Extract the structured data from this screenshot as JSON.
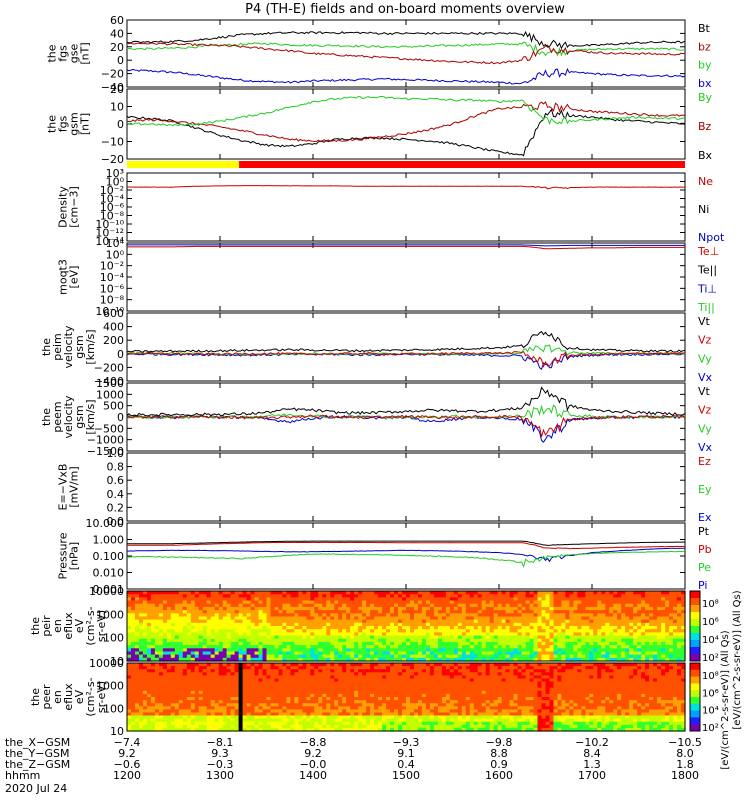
{
  "title": "P4 (TH-E) fields and on-board moments overview",
  "chart_data": [
    {
      "type": "line",
      "ylabel": [
        "the",
        "fgs",
        "gse",
        "[nT]"
      ],
      "ylim": [
        -40,
        60
      ],
      "yticks": [
        "60",
        "40",
        "20",
        "0",
        "−20",
        "−40"
      ],
      "series": [
        {
          "name": "Bt",
          "color": "#000000",
          "values": [
            27,
            27,
            28,
            30,
            34,
            38,
            40,
            41,
            41,
            41,
            41,
            40,
            40,
            40,
            40,
            40,
            40,
            40,
            25,
            22,
            22,
            24,
            26,
            27,
            27
          ]
        },
        {
          "name": "bz",
          "color": "#aa0000",
          "values": [
            25,
            25,
            24,
            23,
            22,
            20,
            17,
            14,
            10,
            8,
            6,
            4,
            2,
            0,
            -2,
            -3,
            -4,
            0,
            18,
            15,
            12,
            10,
            10,
            9,
            9
          ]
        },
        {
          "name": "by",
          "color": "#22cc22",
          "values": [
            17,
            17,
            18,
            20,
            22,
            24,
            25,
            23,
            22,
            22,
            21,
            20,
            20,
            21,
            22,
            23,
            24,
            24,
            12,
            14,
            16,
            17,
            17,
            17,
            16
          ]
        },
        {
          "name": "bx",
          "color": "#0000cc",
          "values": [
            -15,
            -16,
            -18,
            -22,
            -26,
            -30,
            -32,
            -33,
            -31,
            -30,
            -29,
            -28,
            -29,
            -30,
            -31,
            -32,
            -33,
            -35,
            -20,
            -18,
            -20,
            -22,
            -23,
            -23,
            -24
          ]
        }
      ]
    },
    {
      "type": "line",
      "ylabel": [
        "the",
        "fgs",
        "gsm",
        "[nT]"
      ],
      "ylim": [
        -25,
        25
      ],
      "yticks": [
        "20",
        "10",
        "0",
        "−10",
        "−20"
      ],
      "series": [
        {
          "name": "By",
          "color": "#22cc22",
          "values": [
            0,
            0,
            -1,
            0,
            2,
            5,
            8,
            12,
            16,
            18,
            19,
            19,
            18,
            18,
            17,
            17,
            16,
            17,
            3,
            2,
            3,
            4,
            5,
            4,
            4
          ]
        },
        {
          "name": "Bz",
          "color": "#aa0000",
          "values": [
            2,
            3,
            2,
            0,
            -2,
            -5,
            -8,
            -11,
            -12,
            -12,
            -11,
            -9,
            -7,
            -4,
            0,
            6,
            11,
            12,
            13,
            11,
            9,
            8,
            7,
            6,
            6
          ]
        },
        {
          "name": "Bx",
          "color": "#000000",
          "values": [
            5,
            4,
            2,
            -3,
            -8,
            -12,
            -15,
            -16,
            -14,
            -11,
            -10,
            -10,
            -11,
            -12,
            -14,
            -17,
            -20,
            -22,
            8,
            6,
            5,
            3,
            2,
            1,
            0
          ]
        }
      ]
    },
    {
      "type": "line",
      "ylabel": [
        "Density",
        "[cm−3]"
      ],
      "ylim": [
        -14,
        3
      ],
      "log": true,
      "yticks": [
        "10³",
        "10⁰",
        "10⁻²",
        "10⁻⁴",
        "10⁻⁶",
        "10⁻⁸",
        "10⁻¹⁰",
        "10⁻¹²",
        "10⁻¹⁴"
      ],
      "series": [
        {
          "name": "Ne",
          "color": "#cc0000",
          "values": [
            0.3,
            0.3,
            0.3,
            0.5,
            0.6,
            0.7,
            0.7,
            0.6,
            0.6,
            0.6,
            0.5,
            0.5,
            0.5,
            0.5,
            0.5,
            0.5,
            0.5,
            0.5,
            0.2,
            0.2,
            0.3,
            0.3,
            0.3,
            0.3,
            0.3
          ]
        },
        {
          "name": "Ni",
          "color": "#000000",
          "values": []
        },
        {
          "name": "Npot",
          "color": "#0000cc",
          "values": []
        }
      ]
    },
    {
      "type": "line",
      "ylabel": [
        "moqt3",
        "[eV]"
      ],
      "ylim": [
        -10,
        4
      ],
      "log": true,
      "yticks": [
        "10⁴",
        "10⁰",
        "10⁻²",
        "10⁻⁴",
        "10⁻⁶",
        "10⁻⁸",
        "10⁻¹⁰"
      ],
      "series": [
        {
          "name": "Te⊥",
          "color": "#cc0000",
          "values": [
            3.2,
            3.2,
            3.2,
            3.3,
            3.3,
            3.3,
            3.3,
            3.3,
            3.3,
            3.3,
            3.3,
            3.3,
            3.3,
            3.3,
            3.3,
            3.3,
            3.3,
            3.3,
            2.8,
            2.9,
            3.0,
            3.0,
            3.1,
            3.1,
            3.1
          ]
        },
        {
          "name": "Te||",
          "color": "#000000",
          "values": []
        },
        {
          "name": "Ti⊥",
          "color": "#0000cc",
          "values": [
            3.6,
            3.6,
            3.6,
            3.6,
            3.6,
            3.6,
            3.6,
            3.6,
            3.6,
            3.6,
            3.6,
            3.6,
            3.6,
            3.6,
            3.6,
            3.6,
            3.6,
            3.6,
            3.4,
            3.5,
            3.5,
            3.5,
            3.5,
            3.5,
            3.5
          ]
        },
        {
          "name": "Ti||",
          "color": "#22cc22",
          "values": []
        }
      ]
    },
    {
      "type": "line",
      "ylabel": [
        "the",
        "peim",
        "velocity",
        "gsm",
        "[km/s]"
      ],
      "ylim": [
        -400,
        600
      ],
      "yticks": [
        "600",
        "400",
        "200",
        "0",
        "−200",
        "−400"
      ],
      "series": [
        {
          "name": "Vt",
          "color": "#000000",
          "values": [
            35,
            35,
            40,
            40,
            45,
            50,
            55,
            60,
            55,
            50,
            45,
            50,
            55,
            60,
            70,
            80,
            90,
            120,
            350,
            90,
            60,
            50,
            45,
            40,
            40
          ]
        },
        {
          "name": "Vz",
          "color": "#cc0000",
          "values": [
            5,
            5,
            0,
            -5,
            -5,
            0,
            5,
            0,
            -5,
            0,
            5,
            0,
            -5,
            0,
            5,
            10,
            10,
            20,
            -150,
            -20,
            -10,
            0,
            5,
            5,
            5
          ]
        },
        {
          "name": "Vy",
          "color": "#22cc22",
          "values": [
            10,
            10,
            5,
            0,
            -5,
            -10,
            -5,
            0,
            5,
            0,
            -5,
            0,
            5,
            0,
            -5,
            0,
            5,
            10,
            100,
            20,
            10,
            5,
            5,
            5,
            5
          ]
        },
        {
          "name": "Vx",
          "color": "#0000cc",
          "values": [
            -5,
            -5,
            -10,
            -10,
            -15,
            -20,
            -15,
            -10,
            -5,
            -10,
            -15,
            -10,
            -5,
            -10,
            -15,
            -20,
            -25,
            -30,
            -200,
            -40,
            -20,
            -10,
            -10,
            -5,
            -5
          ]
        }
      ]
    },
    {
      "type": "line",
      "ylabel": [
        "the",
        "peem",
        "velocity",
        "gsm",
        "[km/s]"
      ],
      "ylim": [
        -1500,
        1500
      ],
      "yticks": [
        "1500",
        "1000",
        "500",
        "0",
        "−500",
        "−1000",
        "−1500"
      ],
      "series": [
        {
          "name": "Vt",
          "color": "#000000",
          "values": [
            100,
            100,
            110,
            110,
            120,
            130,
            200,
            350,
            300,
            200,
            180,
            200,
            250,
            300,
            280,
            250,
            300,
            400,
            1200,
            500,
            300,
            250,
            200,
            150,
            130
          ]
        },
        {
          "name": "Vz",
          "color": "#cc0000",
          "values": [
            0,
            0,
            10,
            20,
            0,
            -20,
            -50,
            0,
            50,
            0,
            -30,
            0,
            30,
            0,
            -20,
            0,
            20,
            0,
            -800,
            -100,
            -50,
            0,
            20,
            10,
            0
          ]
        },
        {
          "name": "Vy",
          "color": "#22cc22",
          "values": [
            0,
            0,
            -10,
            0,
            10,
            0,
            50,
            100,
            50,
            0,
            30,
            0,
            -20,
            0,
            30,
            0,
            0,
            50,
            400,
            80,
            30,
            0,
            0,
            0,
            0
          ]
        },
        {
          "name": "Vx",
          "color": "#0000cc",
          "values": [
            0,
            0,
            -20,
            0,
            -10,
            0,
            -100,
            -200,
            -50,
            0,
            0,
            -50,
            0,
            -200,
            -100,
            0,
            -50,
            -100,
            -1000,
            -150,
            -50,
            -20,
            -10,
            0,
            0
          ]
        }
      ]
    },
    {
      "type": "line",
      "ylabel": [
        "E=−VxB",
        "[mV/m]"
      ],
      "ylim": [
        0,
        1
      ],
      "yticks": [
        "1.0",
        "0.8",
        "0.6",
        "0.4",
        "0.2",
        "0.0"
      ],
      "series": [
        {
          "name": "Ez",
          "color": "#cc0000",
          "values": []
        },
        {
          "name": "Ey",
          "color": "#22cc22",
          "values": []
        },
        {
          "name": "Ex",
          "color": "#0000cc",
          "values": []
        }
      ]
    },
    {
      "type": "line",
      "ylabel": [
        "Pressure",
        "[nPa]"
      ],
      "ylim": [
        -3,
        1
      ],
      "log": true,
      "yticks": [
        "10.000",
        "1.000",
        "0.100",
        "0.010",
        "0.001"
      ],
      "series": [
        {
          "name": "Pt",
          "color": "#000000",
          "values": [
            0.55,
            0.55,
            0.56,
            0.6,
            0.65,
            0.7,
            0.75,
            0.78,
            0.8,
            0.8,
            0.8,
            0.8,
            0.8,
            0.8,
            0.8,
            0.8,
            0.8,
            0.8,
            0.45,
            0.5,
            0.55,
            0.6,
            0.65,
            0.68,
            0.7
          ]
        },
        {
          "name": "Pb",
          "color": "#cc0000",
          "values": [
            0.45,
            0.45,
            0.45,
            0.5,
            0.55,
            0.6,
            0.65,
            0.66,
            0.66,
            0.66,
            0.66,
            0.65,
            0.64,
            0.64,
            0.64,
            0.64,
            0.63,
            0.63,
            0.3,
            0.28,
            0.3,
            0.33,
            0.35,
            0.37,
            0.38
          ]
        },
        {
          "name": "Pe",
          "color": "#22cc22",
          "values": [
            0.09,
            0.09,
            0.085,
            0.08,
            0.075,
            0.07,
            0.09,
            0.11,
            0.13,
            0.13,
            0.12,
            0.12,
            0.11,
            0.1,
            0.09,
            0.08,
            0.06,
            0.04,
            0.08,
            0.12,
            0.14,
            0.16,
            0.17,
            0.18,
            0.19
          ]
        },
        {
          "name": "Pi",
          "color": "#0000cc",
          "values": [
            0.2,
            0.21,
            0.22,
            0.22,
            0.21,
            0.2,
            0.19,
            0.18,
            0.18,
            0.19,
            0.2,
            0.21,
            0.22,
            0.21,
            0.2,
            0.18,
            0.16,
            0.12,
            0.06,
            0.1,
            0.16,
            0.2,
            0.24,
            0.28,
            0.3
          ]
        }
      ]
    },
    {
      "type": "heatmap",
      "ylabel": [
        "the",
        "peir",
        "en",
        "eflux",
        "eV",
        "(cm²-s-",
        "sr-eV)"
      ],
      "ylim": [
        10,
        20000
      ],
      "yticks": [
        "10000",
        "1000",
        "100",
        "10"
      ]
    },
    {
      "type": "heatmap",
      "ylabel": [
        "the",
        "peer",
        "en",
        "eflux",
        "eV",
        "(cm²-s-",
        "sr-eV)"
      ],
      "ylim": [
        10,
        10000
      ],
      "yticks": [
        "10000",
        "1000",
        "100",
        "10"
      ]
    }
  ],
  "colorbar": {
    "ticks": [
      "10⁸",
      "10⁶",
      "10⁴",
      "10²"
    ],
    "label": "[eV/(cm^2-s-sr-eV)] (All Qs)",
    "label2": "[eV/(cm^2-s-sr-eV)] (All Qs)"
  },
  "xaxis": {
    "rows": [
      {
        "label": "the_X−GSM",
        "values": [
          "−7.4",
          "−8.1",
          "−8.8",
          "−9.3",
          "−9.8",
          "−10.2",
          "−10.5"
        ]
      },
      {
        "label": "the_Y−GSM",
        "values": [
          "9.2",
          "9.3",
          "9.2",
          "9.1",
          "8.8",
          "8.4",
          "8.0"
        ]
      },
      {
        "label": "the_Z−GSM",
        "values": [
          "−0.6",
          "−0.3",
          "−0.0",
          "0.4",
          "0.9",
          "1.3",
          "1.8"
        ]
      },
      {
        "label": "hhmm",
        "values": [
          "1200",
          "1300",
          "1400",
          "1500",
          "1600",
          "1700",
          "1800"
        ]
      }
    ],
    "date": "2020 Jul 24"
  }
}
